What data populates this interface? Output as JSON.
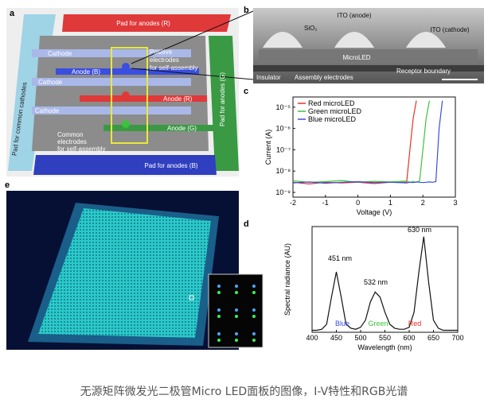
{
  "panel_labels": [
    "a",
    "b",
    "c",
    "d",
    "e"
  ],
  "panel_a": {
    "pad_anodes_r": "Pad for anodes (R)",
    "pad_anodes_g": "Pad for anodes (G)",
    "pad_anodes_b": "Pad for anodes (B)",
    "pad_cathodes": "Pad for common cathodes",
    "cathodes": [
      "Cathode",
      "Cathode",
      "Cathode"
    ],
    "anode_b": "Anode (B)",
    "anode_r": "Anode (R)",
    "anode_g": "Anode (G)",
    "positive_electrodes": [
      "Positive",
      "electrodes",
      "for self-assembly"
    ],
    "common_electrodes": [
      "Common",
      "electrodes",
      "for self-assembly"
    ]
  },
  "panel_b": {
    "sio2": "SiO₂",
    "ito_anode": "ITO (anode)",
    "ito_cathode": "ITO (cathode)",
    "microled": "MicroLED",
    "insulator": "Insulator",
    "assembly": "Assembly electrodes",
    "receptor": "Receptor boundary"
  },
  "chart_data": [
    {
      "type": "line",
      "log_y": true,
      "xlabel": "Voltage (V)",
      "ylabel": "Current (A)",
      "legend": "upper left",
      "x": [
        -2,
        -1.5,
        -1,
        -0.5,
        0,
        0.5,
        1,
        1.5,
        1.6,
        1.7,
        1.8,
        1.9,
        2.0,
        2.1,
        2.2,
        2.3,
        2.4,
        2.5,
        2.6
      ],
      "xlim": [
        -2,
        3
      ],
      "xticks": [
        -2,
        -1,
        0,
        1,
        2,
        3
      ],
      "ylim": [
        6e-10,
        3e-05
      ],
      "yticks": [
        {
          "value": 1e-09,
          "label": "10⁻⁹"
        },
        {
          "value": 1e-08,
          "label": "10⁻⁸"
        },
        {
          "value": 1e-07,
          "label": "10⁻⁷"
        },
        {
          "value": 1e-06,
          "label": "10⁻⁶"
        },
        {
          "value": 1e-05,
          "label": "10⁻⁵"
        }
      ],
      "series": [
        {
          "name": "Red microLED",
          "color": "#e8302a",
          "values": [
            3e-09,
            2.5e-09,
            3e-09,
            2.8e-09,
            3e-09,
            2.6e-09,
            3e-09,
            3e-09,
            1e-07,
            3e-06,
            2e-05,
            null,
            null,
            null,
            null,
            null,
            null,
            null,
            null
          ]
        },
        {
          "name": "Green microLED",
          "color": "#3cc23c",
          "values": [
            3.5e-09,
            3e-09,
            3.2e-09,
            3.6e-09,
            3e-09,
            3.3e-09,
            3.1e-09,
            3.4e-09,
            3e-09,
            3.2e-09,
            3e-09,
            3.5e-09,
            1e-07,
            3e-06,
            2e-05,
            null,
            null,
            null,
            null
          ]
        },
        {
          "name": "Blue microLED",
          "color": "#3a4ee0",
          "values": [
            2.8e-09,
            3.1e-09,
            2.7e-09,
            3e-09,
            3.2e-09,
            2.9e-09,
            3e-09,
            2.8e-09,
            3e-09,
            2.9e-09,
            3.1e-09,
            3e-09,
            2.9e-09,
            3e-09,
            3.1e-09,
            3e-09,
            3.2e-09,
            1e-06,
            2e-05
          ]
        }
      ]
    },
    {
      "type": "line",
      "xlabel": "Wavelength (nm)",
      "ylabel": "Spectral radiance (AU)",
      "x": [
        400,
        410,
        420,
        430,
        440,
        450,
        460,
        470,
        480,
        490,
        500,
        510,
        520,
        530,
        540,
        550,
        560,
        570,
        580,
        590,
        600,
        610,
        620,
        630,
        640,
        650,
        660,
        670,
        680,
        690,
        700
      ],
      "values": [
        0.02,
        0.02,
        0.03,
        0.08,
        0.35,
        0.6,
        0.35,
        0.08,
        0.04,
        0.03,
        0.05,
        0.12,
        0.3,
        0.4,
        0.35,
        0.2,
        0.08,
        0.04,
        0.03,
        0.03,
        0.05,
        0.2,
        0.6,
        0.95,
        0.5,
        0.12,
        0.04,
        0.02,
        0.02,
        0.02,
        0.02
      ],
      "color": "#111111",
      "xlim": [
        400,
        700
      ],
      "xticks": [
        400,
        450,
        500,
        550,
        600,
        650,
        700
      ],
      "ylim": [
        0,
        1.05
      ],
      "annotations": [
        "451 nm",
        "532 nm",
        "630 nm"
      ],
      "band_labels": [
        {
          "text": "Blue",
          "color": "#3a4ee0"
        },
        {
          "text": "Green",
          "color": "#3cc23c"
        },
        {
          "text": "Red",
          "color": "#e8302a"
        }
      ]
    }
  ],
  "caption": "无源矩阵微发光二极管Micro LED面板的图像，I-V特性和RGB光谱"
}
